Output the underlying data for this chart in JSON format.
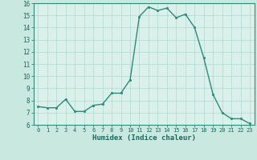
{
  "x": [
    0,
    1,
    2,
    3,
    4,
    5,
    6,
    7,
    8,
    9,
    10,
    11,
    12,
    13,
    14,
    15,
    16,
    17,
    18,
    19,
    20,
    21,
    22,
    23
  ],
  "y": [
    7.5,
    7.4,
    7.4,
    8.1,
    7.1,
    7.1,
    7.6,
    7.7,
    8.6,
    8.6,
    9.7,
    14.9,
    15.7,
    15.4,
    15.6,
    14.8,
    15.1,
    14.0,
    11.5,
    8.5,
    7.0,
    6.5,
    6.5,
    6.1
  ],
  "xlabel": "Humidex (Indice chaleur)",
  "ylim": [
    6,
    16
  ],
  "xlim": [
    -0.5,
    23.5
  ],
  "yticks": [
    6,
    7,
    8,
    9,
    10,
    11,
    12,
    13,
    14,
    15,
    16
  ],
  "xticks": [
    0,
    1,
    2,
    3,
    4,
    5,
    6,
    7,
    8,
    9,
    10,
    11,
    12,
    13,
    14,
    15,
    16,
    17,
    18,
    19,
    20,
    21,
    22,
    23
  ],
  "line_color": "#2d8b78",
  "marker_color": "#2d8b78",
  "bg_color": "#c8e8e0",
  "plot_bg_color": "#daf0eb",
  "grid_color": "#b0d8d0",
  "label_color": "#1a6a5e",
  "tick_color": "#1a6a5e",
  "spine_color": "#2d8b78"
}
